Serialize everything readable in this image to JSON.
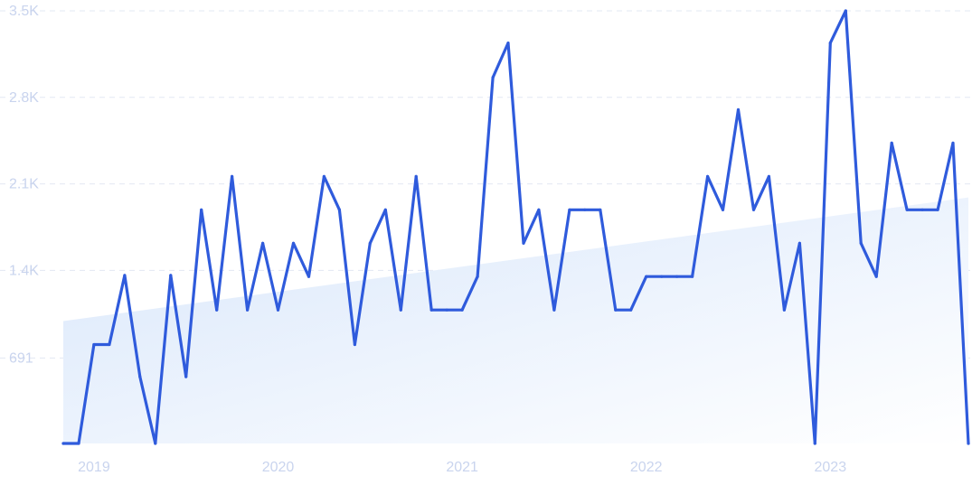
{
  "chart_data": {
    "type": "line",
    "title": "",
    "xlabel": "",
    "ylabel": "",
    "x_tick_labels": [
      "2019",
      "2020",
      "2021",
      "2022",
      "2023"
    ],
    "y_tick_labels": [
      "691",
      "1.4K",
      "2.1K",
      "2.8K",
      "3.5K"
    ],
    "ylim": [
      0,
      3500
    ],
    "xlim": [
      "2018-11",
      "2023-10"
    ],
    "grid": "horizontal dashed",
    "colors": {
      "line": "#2f5bdc",
      "area": "#dbe8fb",
      "grid": "#e3e8f3",
      "tick_text": "#c9d4ee"
    },
    "series": [
      {
        "x": [
          "2018-11",
          "2018-12",
          "2019-01",
          "2019-02",
          "2019-03",
          "2019-04",
          "2019-05",
          "2019-06",
          "2019-07",
          "2019-08",
          "2019-09",
          "2019-10",
          "2019-11",
          "2019-12",
          "2020-01",
          "2020-02",
          "2020-03",
          "2020-04",
          "2020-05",
          "2020-06",
          "2020-07",
          "2020-08",
          "2020-09",
          "2020-10",
          "2020-11",
          "2020-12",
          "2021-01",
          "2021-02",
          "2021-03",
          "2021-04",
          "2021-05",
          "2021-06",
          "2021-07",
          "2021-08",
          "2021-09",
          "2021-10",
          "2021-11",
          "2021-12",
          "2022-01",
          "2022-02",
          "2022-03",
          "2022-04",
          "2022-05",
          "2022-06",
          "2022-07",
          "2022-08",
          "2022-09",
          "2022-10",
          "2022-11",
          "2022-12",
          "2023-01",
          "2023-02",
          "2023-03",
          "2023-04",
          "2023-05",
          "2023-06",
          "2023-07",
          "2023-08",
          "2023-09",
          "2023-10"
        ],
        "values": [
          0,
          0,
          800,
          800,
          1360,
          540,
          0,
          1360,
          540,
          1890,
          1080,
          2160,
          1080,
          1620,
          1080,
          1620,
          1350,
          2160,
          1890,
          800,
          1620,
          1890,
          1080,
          2160,
          1080,
          1080,
          1080,
          1350,
          2960,
          3240,
          1620,
          1890,
          1080,
          1890,
          1890,
          1890,
          1080,
          1080,
          1350,
          1350,
          1350,
          1350,
          2160,
          1890,
          2700,
          1890,
          2160,
          1080,
          1620,
          0,
          3240,
          3500,
          1620,
          1350,
          2430,
          1890,
          1890,
          1890,
          2430,
          0
        ]
      }
    ],
    "trend": {
      "x": [
        "2018-11",
        "2023-10"
      ],
      "values": [
        990,
        1990
      ]
    }
  }
}
